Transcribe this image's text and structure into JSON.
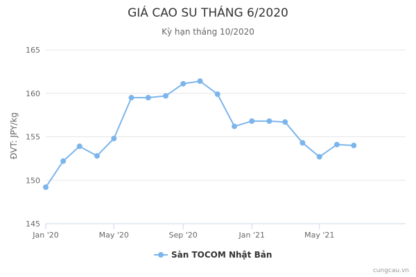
{
  "chart_data": {
    "type": "line",
    "title": "GIÁ CAO SU THÁNG 6/2020",
    "subtitle": "Kỳ hạn tháng 10/2020",
    "ylabel": "ĐVT: JPY/kg",
    "xlabel": "",
    "ylim": [
      145,
      165
    ],
    "yticks": [
      145,
      150,
      155,
      160,
      165
    ],
    "xticks": [
      "Jan '20",
      "May '20",
      "Sep '20",
      "Jan '21",
      "May '21"
    ],
    "x": [
      "2020-01",
      "2020-02",
      "2020-03",
      "2020-04",
      "2020-05",
      "2020-06",
      "2020-07",
      "2020-08",
      "2020-09",
      "2020-10",
      "2020-11",
      "2020-12",
      "2021-01",
      "2021-02",
      "2021-03",
      "2021-04",
      "2021-05",
      "2021-06",
      "2021-07"
    ],
    "series": [
      {
        "name": "Sàn TOCOM Nhật Bản",
        "color": "#7cb5ec",
        "values": [
          149.2,
          152.2,
          153.9,
          152.8,
          154.8,
          159.5,
          159.5,
          159.7,
          161.1,
          161.4,
          159.9,
          156.2,
          156.8,
          156.8,
          156.7,
          154.3,
          152.7,
          154.1,
          154.0
        ]
      }
    ],
    "grid": true,
    "legend_position": "bottom-center"
  },
  "credits": "cungcau.vn"
}
